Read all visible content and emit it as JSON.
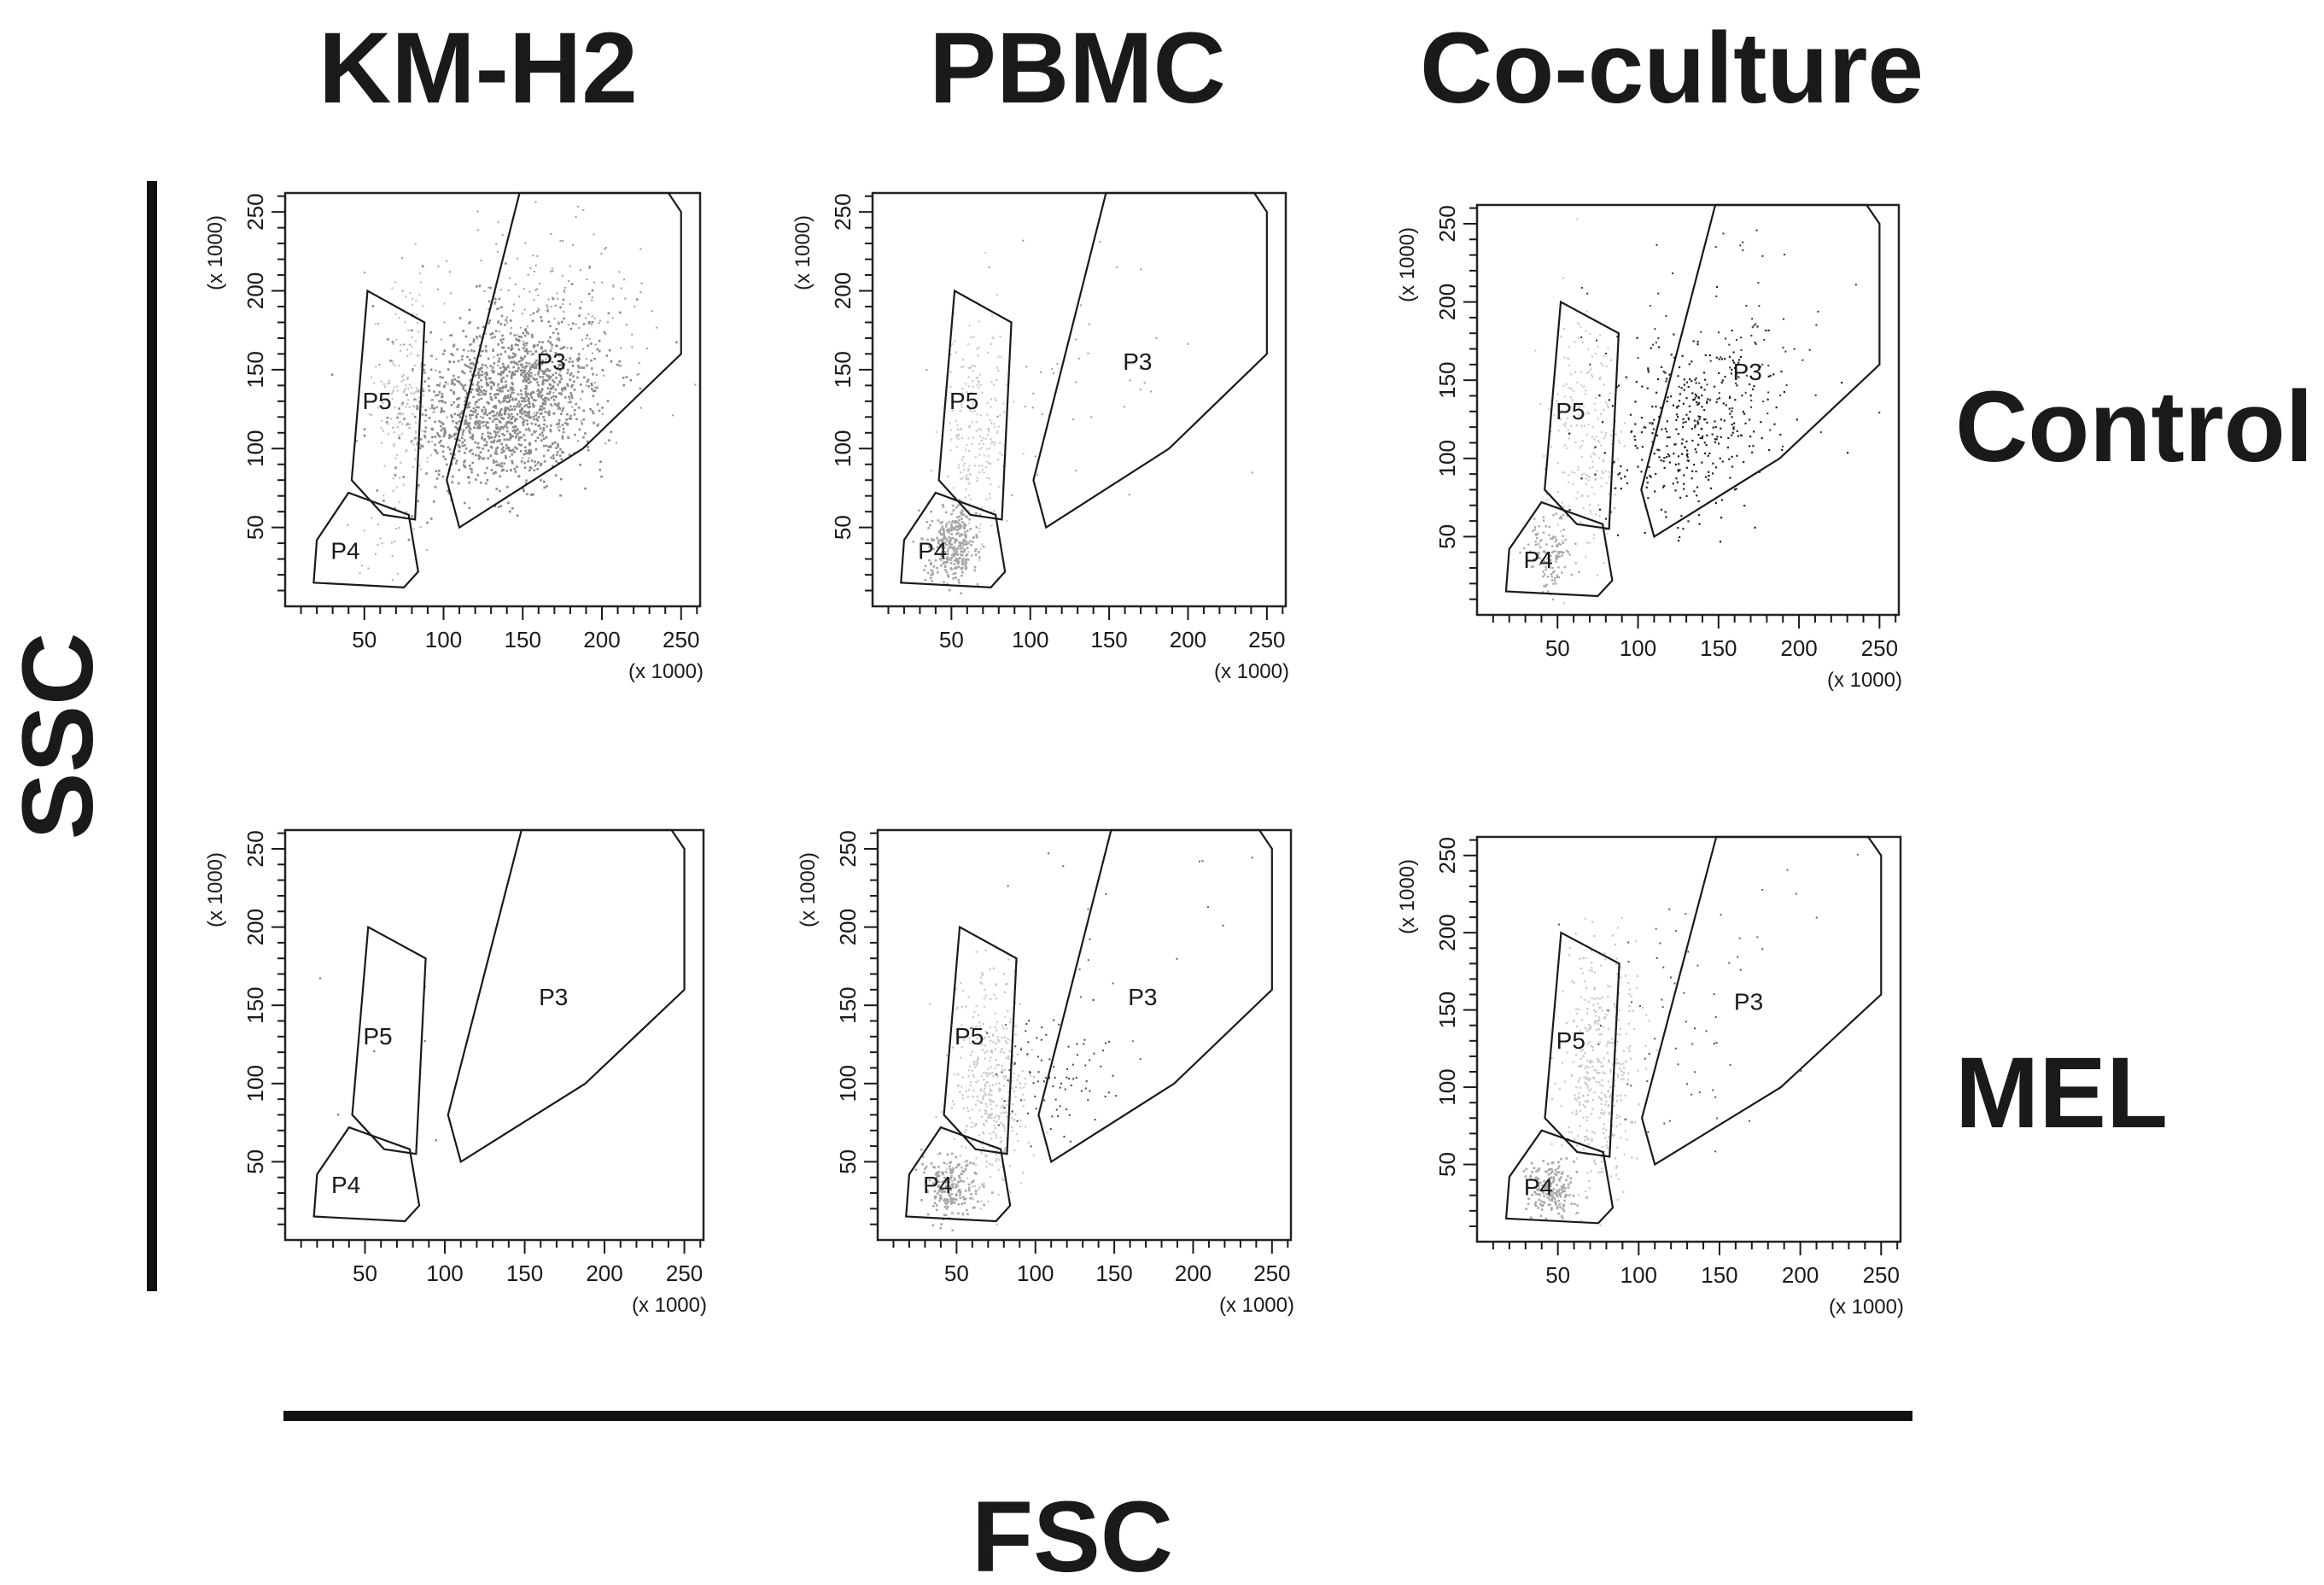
{
  "figure": {
    "column_labels": [
      "KM-H2",
      "PBMC",
      "Co-culture"
    ],
    "row_labels": [
      "Control",
      "MEL"
    ],
    "y_axis_title": "SSC",
    "x_axis_title": "FSC"
  },
  "chart_data": {
    "type": "scatter",
    "description": "Flow cytometry FSC vs SSC dot plots, 2 conditions x 3 cell populations",
    "xlabel": "FSC",
    "ylabel": "SSC",
    "xlim": [
      0,
      262
    ],
    "ylim": [
      0,
      262
    ],
    "x_unit": "(x 1000)",
    "y_unit": "(x 1000)",
    "x_ticks": [
      50,
      100,
      150,
      200,
      250
    ],
    "y_ticks": [
      50,
      100,
      150,
      200,
      250
    ],
    "gates": {
      "P3": [
        [
          110,
          50
        ],
        [
          102,
          80
        ],
        [
          148,
          262
        ],
        [
          242,
          262
        ],
        [
          250,
          250
        ],
        [
          250,
          160
        ],
        [
          188,
          100
        ]
      ],
      "P4": [
        [
          20,
          42
        ],
        [
          40,
          72
        ],
        [
          78,
          58
        ],
        [
          84,
          22
        ],
        [
          75,
          12
        ],
        [
          18,
          15
        ]
      ],
      "P5": [
        [
          52,
          200
        ],
        [
          88,
          180
        ],
        [
          82,
          55
        ],
        [
          62,
          58
        ],
        [
          42,
          80
        ]
      ]
    },
    "panels": [
      {
        "id": "km-h2-control",
        "row": "Control",
        "column": "KM-H2",
        "populations": [
          {
            "cx": 140,
            "cy": 130,
            "sx": 25,
            "sy": 25,
            "n": 1400,
            "color": "#8a8a8a",
            "size": 2.6
          },
          {
            "cx": 165,
            "cy": 175,
            "sx": 40,
            "sy": 40,
            "n": 260,
            "color": "#9a9a9a",
            "size": 2.0
          },
          {
            "cx": 75,
            "cy": 130,
            "sx": 10,
            "sy": 35,
            "n": 170,
            "color": "#c2c2c2",
            "size": 2.2
          },
          {
            "cx": 60,
            "cy": 40,
            "sx": 12,
            "sy": 10,
            "n": 18,
            "color": "#b0b0b0",
            "size": 2.0
          }
        ]
      },
      {
        "id": "pbmc-control",
        "row": "Control",
        "column": "PBMC",
        "populations": [
          {
            "cx": 50,
            "cy": 40,
            "sx": 8,
            "sy": 12,
            "n": 320,
            "color": "#a6a6a6",
            "size": 2.6
          },
          {
            "cx": 65,
            "cy": 110,
            "sx": 10,
            "sy": 35,
            "n": 220,
            "color": "#cbcbcb",
            "size": 2.2
          },
          {
            "cx": 130,
            "cy": 140,
            "sx": 40,
            "sy": 40,
            "n": 45,
            "color": "#9a9a9a",
            "size": 2.0
          }
        ]
      },
      {
        "id": "co-culture-control",
        "row": "Control",
        "column": "Co-culture",
        "populations": [
          {
            "cx": 45,
            "cy": 40,
            "sx": 7,
            "sy": 12,
            "n": 140,
            "color": "#aaaaaa",
            "size": 2.4
          },
          {
            "cx": 68,
            "cy": 115,
            "sx": 12,
            "sy": 40,
            "n": 220,
            "color": "#cccccc",
            "size": 2.2
          },
          {
            "cx": 130,
            "cy": 120,
            "sx": 22,
            "sy": 25,
            "n": 380,
            "color": "#222222",
            "size": 2.2
          },
          {
            "cx": 150,
            "cy": 170,
            "sx": 45,
            "sy": 45,
            "n": 90,
            "color": "#333333",
            "size": 2.0
          }
        ]
      },
      {
        "id": "km-h2-mel",
        "row": "MEL",
        "column": "KM-H2",
        "populations": [
          {
            "cx": 70,
            "cy": 120,
            "sx": 30,
            "sy": 60,
            "n": 6,
            "color": "#777777",
            "size": 2.2
          }
        ]
      },
      {
        "id": "pbmc-mel",
        "row": "MEL",
        "column": "PBMC",
        "populations": [
          {
            "cx": 45,
            "cy": 35,
            "sx": 8,
            "sy": 10,
            "n": 200,
            "color": "#a6a6a6",
            "size": 2.6
          },
          {
            "cx": 70,
            "cy": 100,
            "sx": 12,
            "sy": 35,
            "n": 420,
            "color": "#c8c8c8",
            "size": 2.2
          },
          {
            "cx": 110,
            "cy": 110,
            "sx": 20,
            "sy": 20,
            "n": 90,
            "color": "#444444",
            "size": 2.0
          },
          {
            "cx": 150,
            "cy": 190,
            "sx": 45,
            "sy": 45,
            "n": 20,
            "color": "#666666",
            "size": 2.0
          }
        ]
      },
      {
        "id": "co-culture-mel",
        "row": "MEL",
        "column": "Co-culture",
        "populations": [
          {
            "cx": 45,
            "cy": 35,
            "sx": 7,
            "sy": 10,
            "n": 180,
            "color": "#a8a8a8",
            "size": 2.6
          },
          {
            "cx": 75,
            "cy": 110,
            "sx": 12,
            "sy": 40,
            "n": 420,
            "color": "#c8c8c8",
            "size": 2.2
          },
          {
            "cx": 120,
            "cy": 130,
            "sx": 30,
            "sy": 40,
            "n": 55,
            "color": "#555555",
            "size": 2.0
          },
          {
            "cx": 150,
            "cy": 220,
            "sx": 40,
            "sy": 25,
            "n": 12,
            "color": "#666666",
            "size": 2.0
          }
        ]
      }
    ]
  }
}
